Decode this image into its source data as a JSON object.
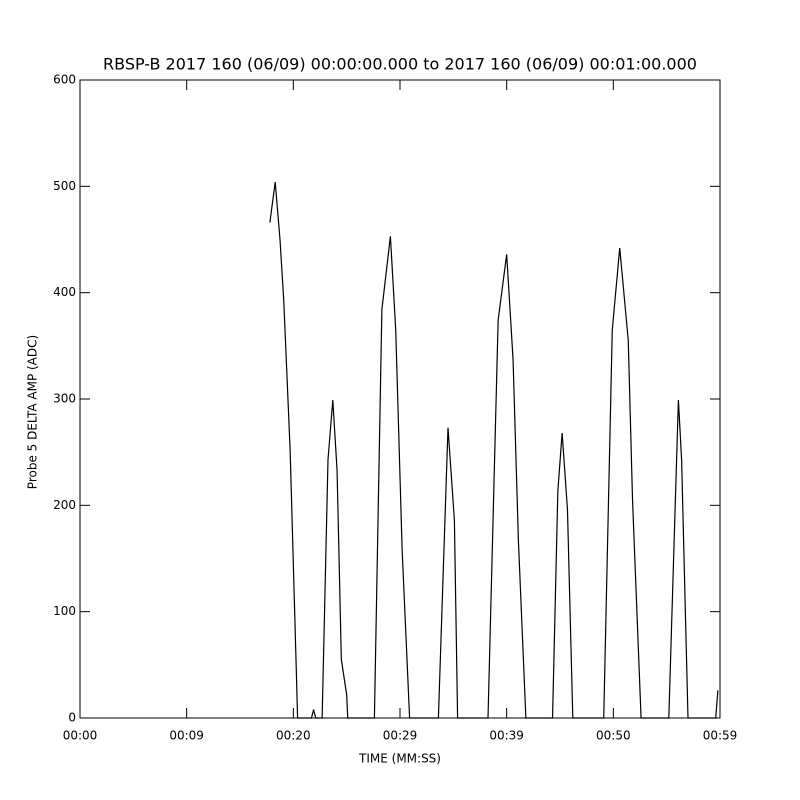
{
  "chart_data": {
    "type": "line",
    "title": "RBSP-B 2017 160 (06/09) 00:00:00.000 to 2017 160 (06/09) 00:01:00.000",
    "xlabel": "TIME (MM:SS)",
    "ylabel": "Probe 5 DELTA AMP (ADC)",
    "x": [
      17.8,
      18.3,
      18.75,
      19.1,
      19.7,
      20.25,
      20.4,
      21.7,
      21.9,
      22.1,
      22.7,
      23.25,
      23.7,
      24.1,
      24.5,
      25.0,
      25.1,
      27.6,
      28.3,
      29.1,
      29.6,
      30.2,
      30.9,
      33.6,
      34.5,
      35.1,
      35.4,
      38.25,
      39.2,
      40.0,
      40.6,
      41.1,
      41.8,
      44.3,
      44.8,
      45.2,
      45.7,
      46.2,
      49.1,
      49.9,
      50.6,
      51.4,
      51.8,
      52.6,
      55.2,
      56.1,
      56.4,
      57.0,
      59.6,
      59.8
    ],
    "series": [
      {
        "color": "#000000",
        "values": [
          466,
          504,
          450,
          393,
          252,
          55,
          0,
          0,
          8,
          0,
          0,
          243,
          299,
          233,
          55,
          22,
          0,
          0,
          384,
          453,
          365,
          158,
          0,
          0,
          273,
          186,
          0,
          0,
          374,
          436,
          337,
          167,
          0,
          0,
          214,
          268,
          196,
          0,
          0,
          365,
          442,
          355,
          205,
          0,
          0,
          299,
          243,
          0,
          0,
          26
        ]
      }
    ],
    "xlim": [
      0,
      60
    ],
    "xticks": [
      {
        "value": 0,
        "label": "00:00"
      },
      {
        "value": 10,
        "label": "00:09"
      },
      {
        "value": 20,
        "label": "00:20"
      },
      {
        "value": 30,
        "label": "00:29"
      },
      {
        "value": 40,
        "label": "00:39"
      },
      {
        "value": 50,
        "label": "00:50"
      },
      {
        "value": 60,
        "label": "00:59"
      }
    ],
    "ylim": [
      0,
      600
    ],
    "yticks": [
      0,
      100,
      200,
      300,
      400,
      500,
      600
    ],
    "grid": false
  }
}
